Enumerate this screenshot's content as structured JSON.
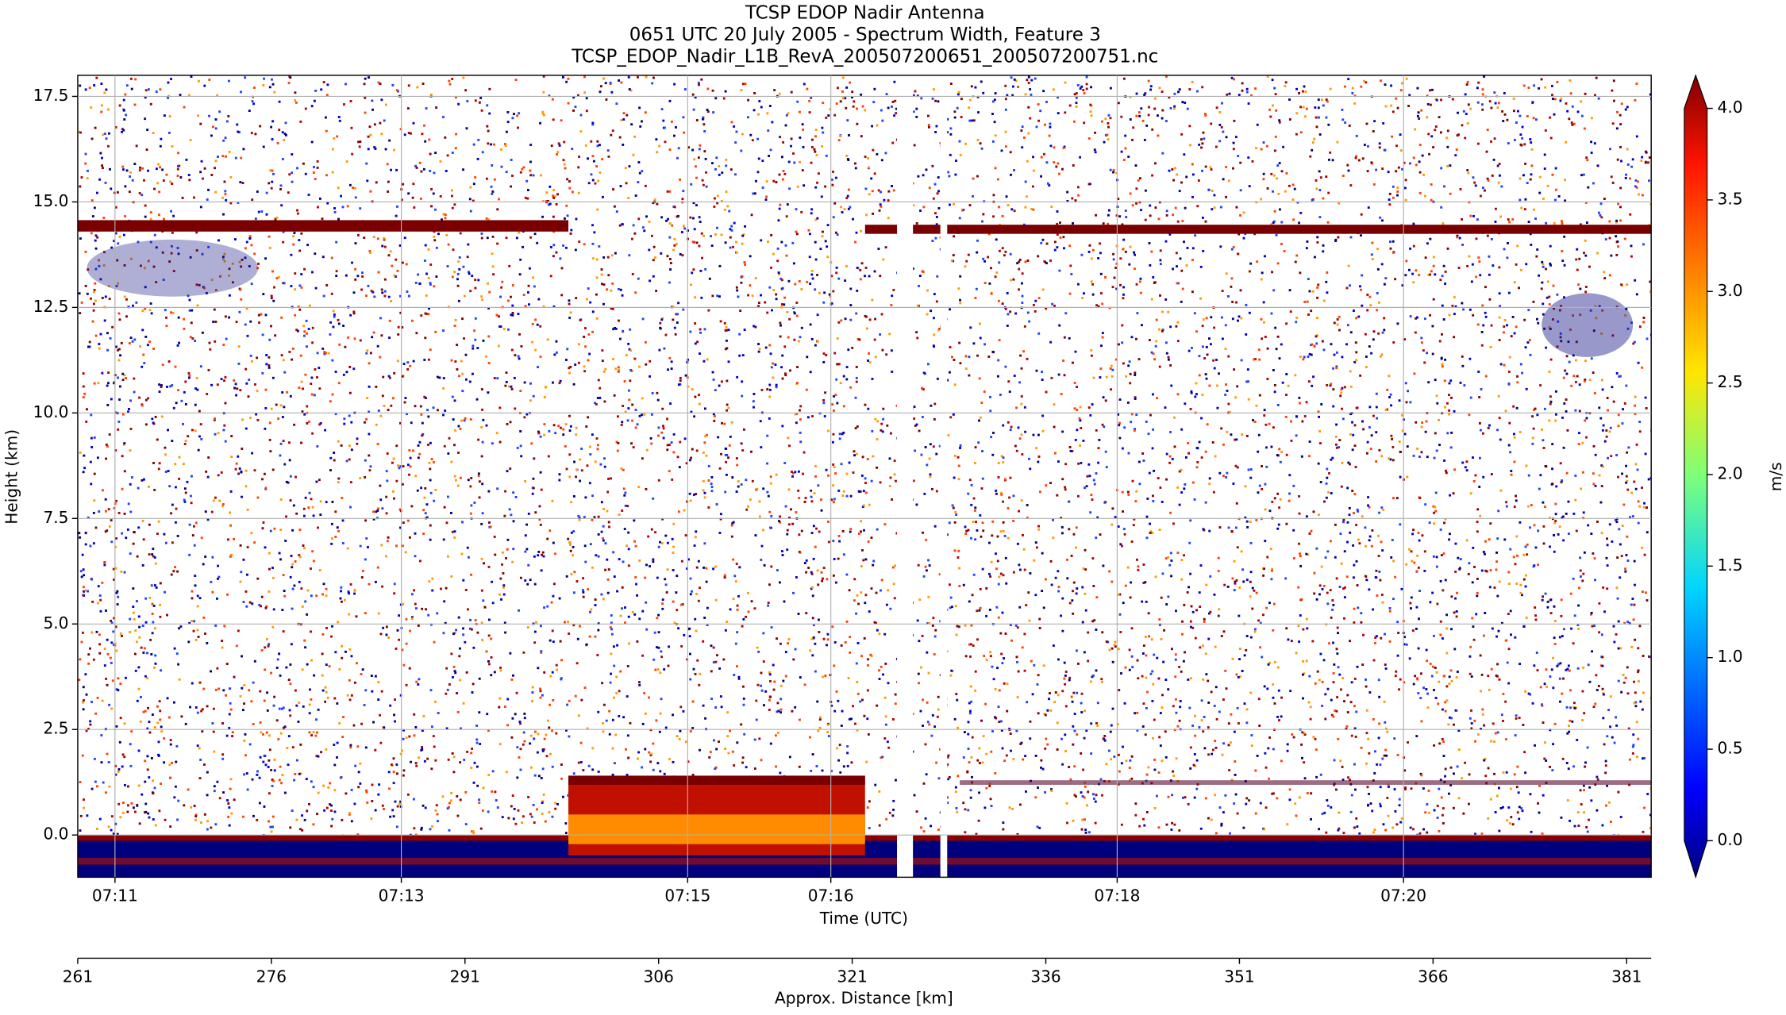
{
  "chart_data": {
    "type": "heatmap",
    "title": "TCSP EDOP Nadir Antenna",
    "subtitle": "0651 UTC 20 July 2005 - Spectrum Width, Feature 3",
    "filename": "TCSP_EDOP_Nadir_L1B_RevA_200507200651_200507200751.nc",
    "x_label": "Time (UTC)",
    "y_label": "Height (km)",
    "xlim": [
      10.74,
      21.73
    ],
    "xticks": [
      {
        "value": 11,
        "label": "07:11"
      },
      {
        "value": 13,
        "label": "07:13"
      },
      {
        "value": 15,
        "label": "07:15"
      },
      {
        "value": 16,
        "label": "07:16"
      },
      {
        "value": 18,
        "label": "07:18"
      },
      {
        "value": 20,
        "label": "07:20"
      }
    ],
    "ylim": [
      -1,
      18
    ],
    "yticks": [
      {
        "value": 0,
        "label": "0.0"
      },
      {
        "value": 2.5,
        "label": "2.5"
      },
      {
        "value": 5,
        "label": "5.0"
      },
      {
        "value": 7.5,
        "label": "7.5"
      },
      {
        "value": 10,
        "label": "10.0"
      },
      {
        "value": 12.5,
        "label": "12.5"
      },
      {
        "value": 15,
        "label": "15.0"
      },
      {
        "value": 17.5,
        "label": "17.5"
      }
    ],
    "grid": true,
    "distance_axis": {
      "label": "Approx. Distance [km]",
      "lim": [
        261,
        382.9
      ],
      "ticks": [
        261,
        276,
        291,
        306,
        321,
        336,
        351,
        366,
        381
      ]
    },
    "colorbar": {
      "label": "m/s",
      "lim": [
        0,
        4
      ],
      "colormap": "jet",
      "ticks": [
        {
          "value": 0,
          "label": "0.0"
        },
        {
          "value": 0.5,
          "label": "0.5"
        },
        {
          "value": 1,
          "label": "1.0"
        },
        {
          "value": 1.5,
          "label": "1.5"
        },
        {
          "value": 2,
          "label": "2.0"
        },
        {
          "value": 2.5,
          "label": "2.5"
        },
        {
          "value": 3,
          "label": "3.0"
        },
        {
          "value": 3.5,
          "label": "3.5"
        },
        {
          "value": 4,
          "label": "4.0"
        }
      ]
    }
  }
}
